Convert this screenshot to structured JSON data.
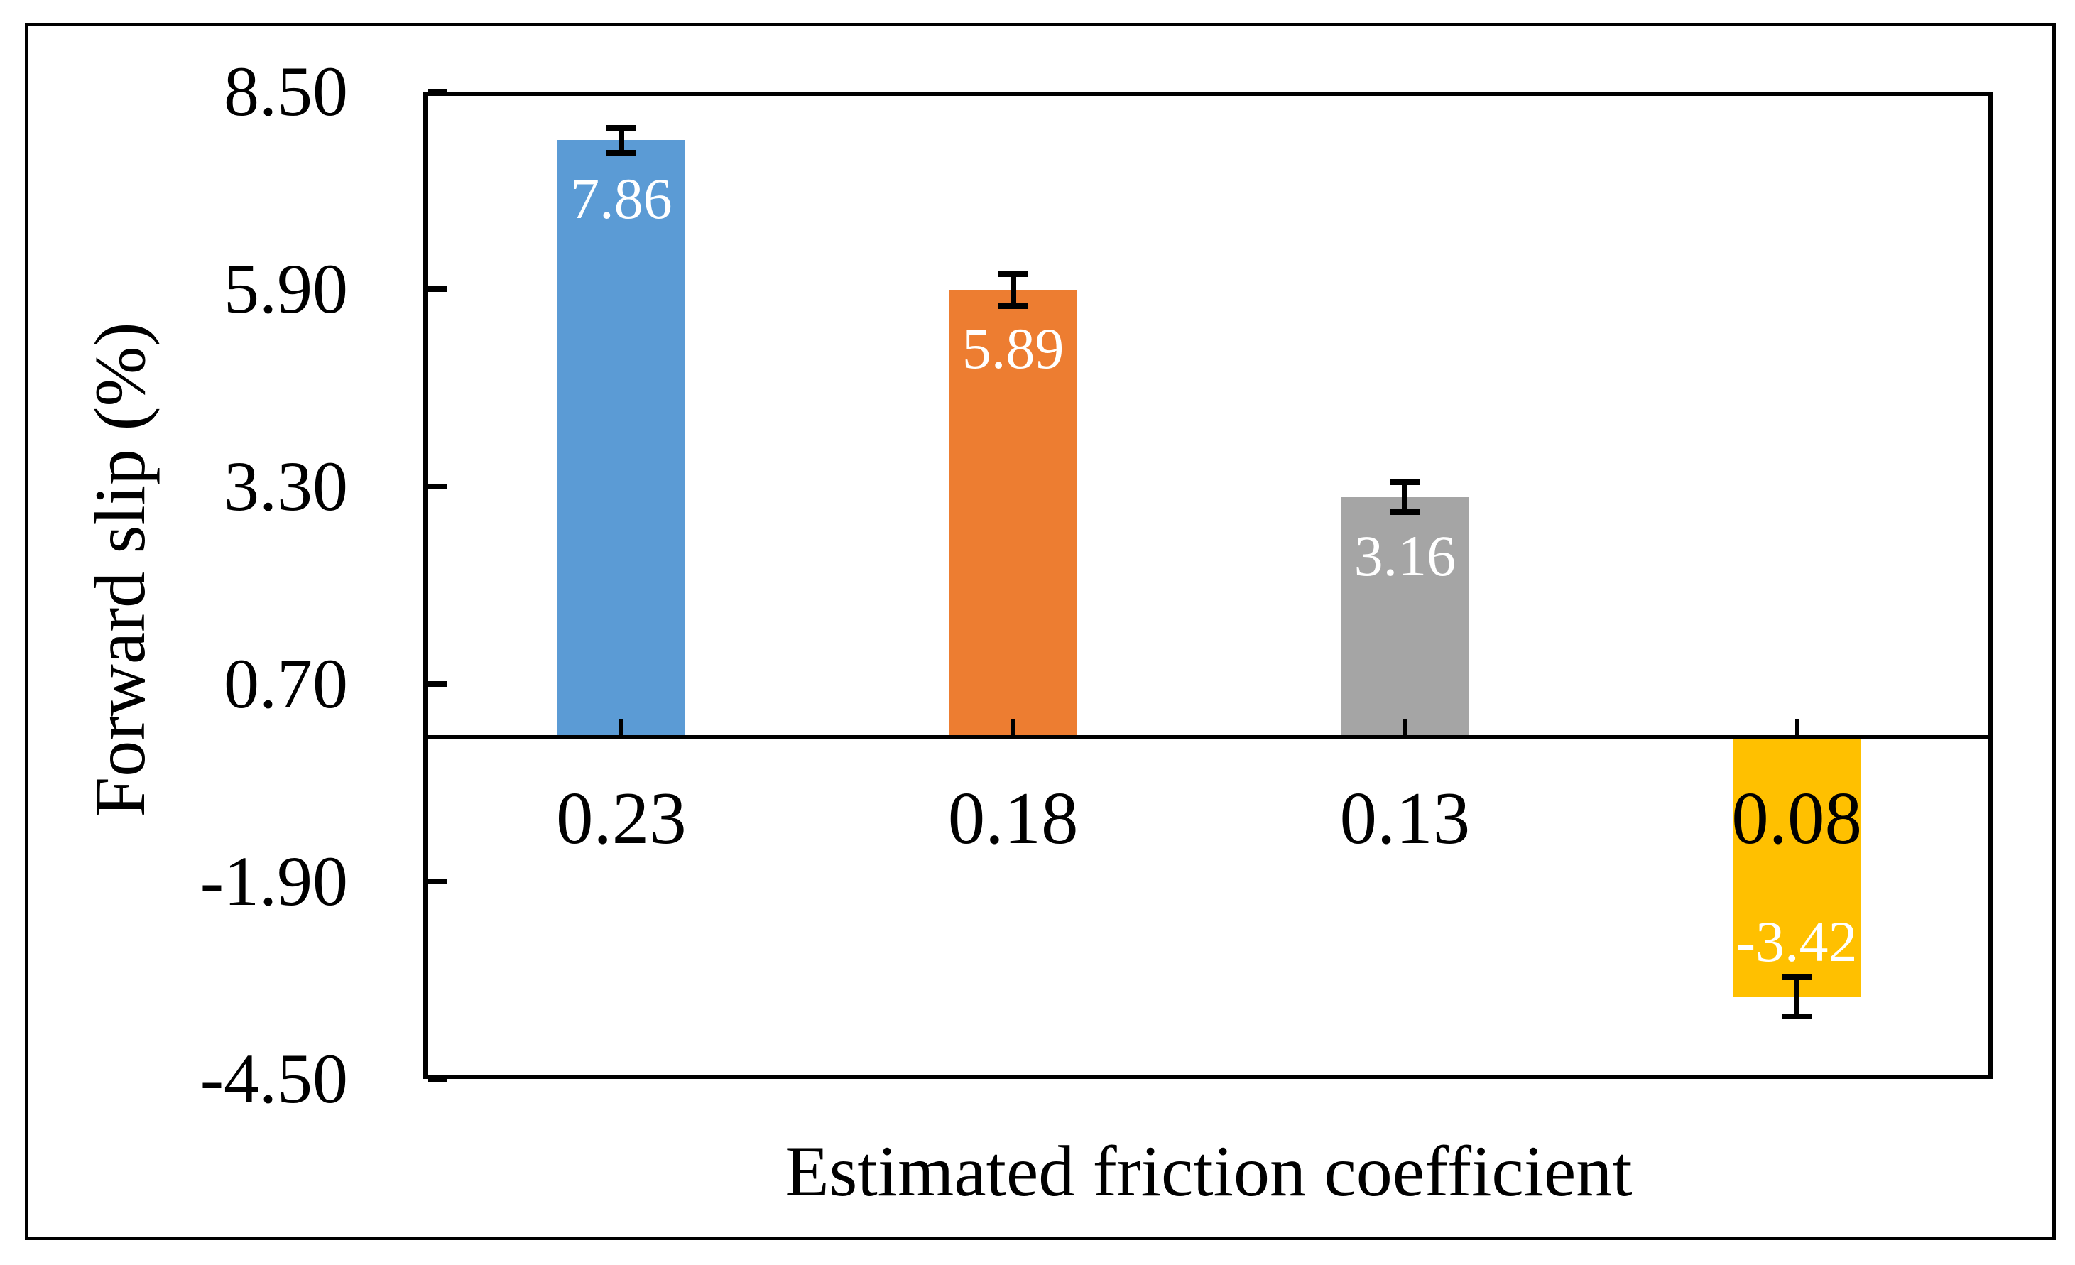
{
  "figure": {
    "background_color": "#ffffff",
    "frame_color": "#000000"
  },
  "chart_data": {
    "type": "bar",
    "title": "",
    "xlabel": "Estimated friction coefficient",
    "ylabel": "Forward slip (%)",
    "categories": [
      "0.23",
      "0.18",
      "0.13",
      "0.08"
    ],
    "values": [
      7.86,
      5.89,
      3.16,
      -3.42
    ],
    "value_labels": [
      "7.86",
      "5.89",
      "3.16",
      "-3.42"
    ],
    "error_bars": [
      0.16,
      0.21,
      0.2,
      0.26
    ],
    "bar_colors": [
      "#5B9BD5",
      "#ED7D31",
      "#A5A5A5",
      "#FFC000"
    ],
    "value_label_color": "#ffffff",
    "category_label_color": "#000000",
    "axis_color": "#000000",
    "y_tick_labels": [
      "8.50",
      "5.90",
      "3.30",
      "0.70",
      "-1.90",
      "-4.50"
    ],
    "y_tick_values": [
      8.5,
      5.9,
      3.3,
      0.7,
      -1.9,
      -4.5
    ],
    "ylim": [
      -4.5,
      8.5
    ],
    "grid": false,
    "legend": null
  }
}
